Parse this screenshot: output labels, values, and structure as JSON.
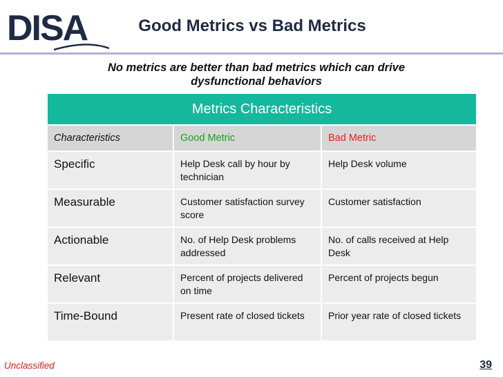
{
  "header": {
    "logo_text": "DISA",
    "title": "Good Metrics vs Bad Metrics"
  },
  "subtitle": {
    "line1": "No metrics are better than bad metrics which can drive",
    "line2": "dysfunctional behaviors"
  },
  "table": {
    "caption": "Metrics Characteristics",
    "columns": {
      "characteristics": "Characteristics",
      "good": "Good Metric",
      "bad": "Bad Metric"
    },
    "rows": [
      {
        "characteristic": "Specific",
        "good": "Help Desk call by hour by technician",
        "bad": "Help Desk volume"
      },
      {
        "characteristic": "Measurable",
        "good": "Customer satisfaction survey score",
        "bad": "Customer satisfaction"
      },
      {
        "characteristic": "Actionable",
        "good": "No. of Help Desk problems addressed",
        "bad": "No. of calls received at Help Desk"
      },
      {
        "characteristic": "Relevant",
        "good": "Percent of projects delivered on time",
        "bad": "Percent of projects begun"
      },
      {
        "characteristic": "Time-Bound",
        "good": "Present rate of closed tickets",
        "bad": "Prior year rate of closed tickets"
      }
    ]
  },
  "colors": {
    "header_teal": "#15b89d",
    "good_green": "#1a9e1a",
    "bad_red": "#e3201b",
    "logo_navy": "#1f2a44"
  },
  "footer": {
    "classification": "Unclassified",
    "page_number": "39"
  }
}
